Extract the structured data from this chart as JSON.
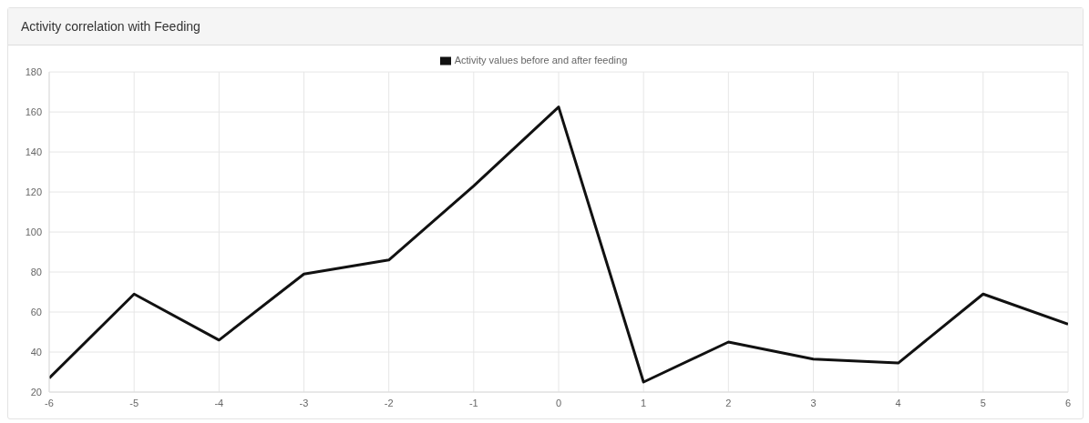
{
  "chart_data": {
    "type": "line",
    "title": "Activity correlation with Feeding",
    "x": [
      -6,
      -5,
      -4,
      -3,
      -2,
      -1,
      0,
      1,
      2,
      3,
      4,
      5,
      6
    ],
    "series": [
      {
        "name": "Activity values before and after feeding",
        "color": "#111111",
        "values": [
          27,
          69,
          46,
          79,
          86,
          123,
          162.5,
          25,
          45,
          36.5,
          34.5,
          69,
          54
        ]
      }
    ],
    "xlim": [
      -6,
      6
    ],
    "xticks": [
      -6,
      -5,
      -4,
      -3,
      -2,
      -1,
      0,
      1,
      2,
      3,
      4,
      5,
      6
    ],
    "ylim": [
      20,
      180
    ],
    "yticks": [
      20,
      40,
      60,
      80,
      100,
      120,
      140,
      160,
      180
    ],
    "grid": true,
    "legend": "top",
    "marker": "none",
    "line_style": "solid"
  }
}
